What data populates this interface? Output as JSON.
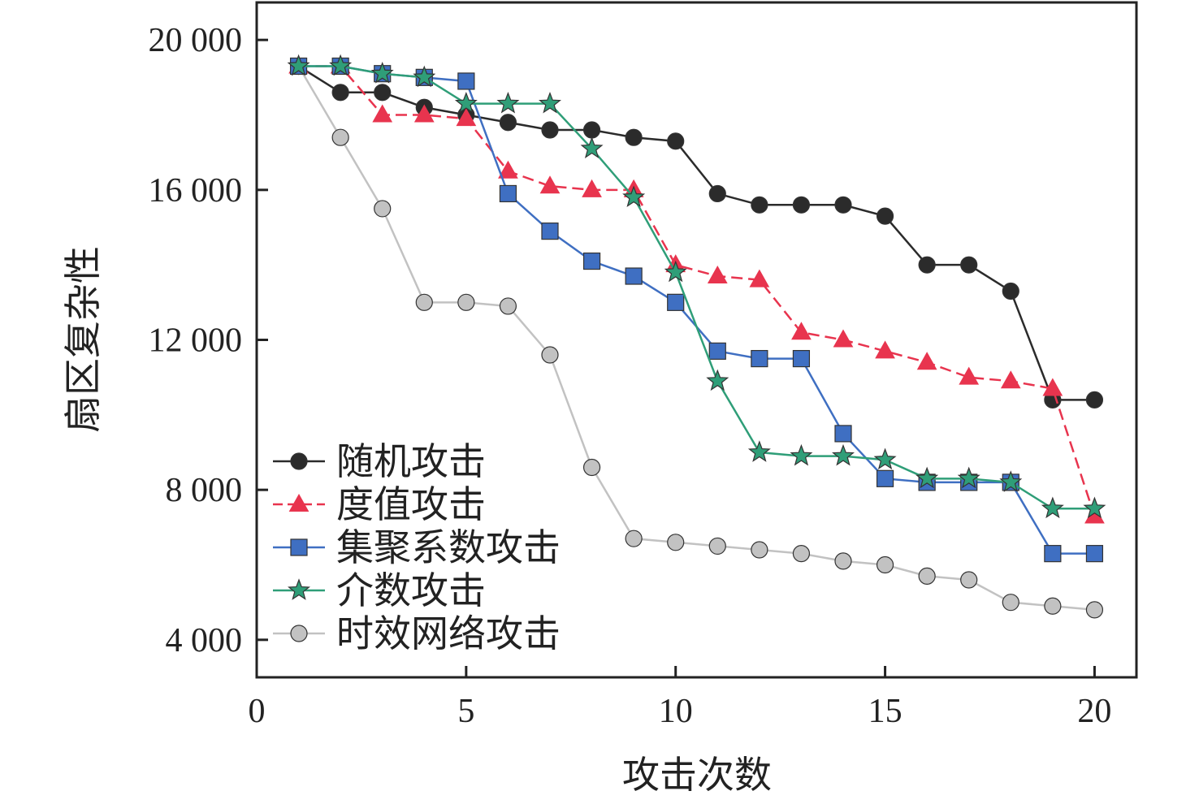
{
  "chart_data": {
    "type": "line",
    "xlabel": "攻击次数",
    "ylabel": "扇区复杂性",
    "xlim": [
      0,
      21
    ],
    "ylim": [
      3000,
      21000
    ],
    "xticks": [
      0,
      5,
      10,
      15,
      20
    ],
    "xtick_labels": [
      "0",
      "5",
      "10",
      "15",
      "20"
    ],
    "yticks": [
      4000,
      8000,
      12000,
      16000,
      20000
    ],
    "ytick_labels": [
      "4 000",
      "8 000",
      "12 000",
      "16 000",
      "20 000"
    ],
    "grid": false,
    "legend_position": "lower-left",
    "x": [
      1,
      2,
      3,
      4,
      5,
      6,
      7,
      8,
      9,
      10,
      11,
      12,
      13,
      14,
      15,
      16,
      17,
      18,
      19,
      20
    ],
    "series": [
      {
        "name": "随机攻击",
        "color": "#2b2b2b",
        "marker": "circle",
        "dashed": false,
        "values": [
          19300,
          18600,
          18600,
          18200,
          18000,
          17800,
          17600,
          17600,
          17400,
          17300,
          15900,
          15600,
          15600,
          15600,
          15300,
          14000,
          14000,
          13300,
          10400,
          10400
        ]
      },
      {
        "name": "度值攻击",
        "color": "#e8344e",
        "marker": "triangle",
        "dashed": true,
        "values": [
          19300,
          19300,
          18000,
          18000,
          17900,
          16500,
          16100,
          16000,
          16000,
          14000,
          13700,
          13600,
          12200,
          12000,
          11700,
          11400,
          11000,
          10900,
          10700,
          7300
        ]
      },
      {
        "name": "集聚系数攻击",
        "color": "#3f6fc2",
        "marker": "square",
        "dashed": false,
        "values": [
          19300,
          19300,
          19100,
          19000,
          18900,
          15900,
          14900,
          14100,
          13700,
          13000,
          11700,
          11500,
          11500,
          9500,
          8300,
          8200,
          8200,
          8200,
          6300,
          6300
        ]
      },
      {
        "name": "介数攻击",
        "color": "#2f9e78",
        "marker": "star",
        "dashed": false,
        "values": [
          19300,
          19300,
          19100,
          19000,
          18300,
          18300,
          18300,
          17100,
          15800,
          13800,
          10900,
          9000,
          8900,
          8900,
          8800,
          8300,
          8300,
          8200,
          7500,
          7500
        ]
      },
      {
        "name": "时效网络攻击",
        "color": "#c2c2c2",
        "marker": "circle",
        "dashed": false,
        "values": [
          19300,
          17400,
          15500,
          13000,
          13000,
          12900,
          11600,
          8600,
          6700,
          6600,
          6500,
          6400,
          6300,
          6100,
          6000,
          5700,
          5600,
          5000,
          4900,
          4800
        ]
      }
    ]
  }
}
